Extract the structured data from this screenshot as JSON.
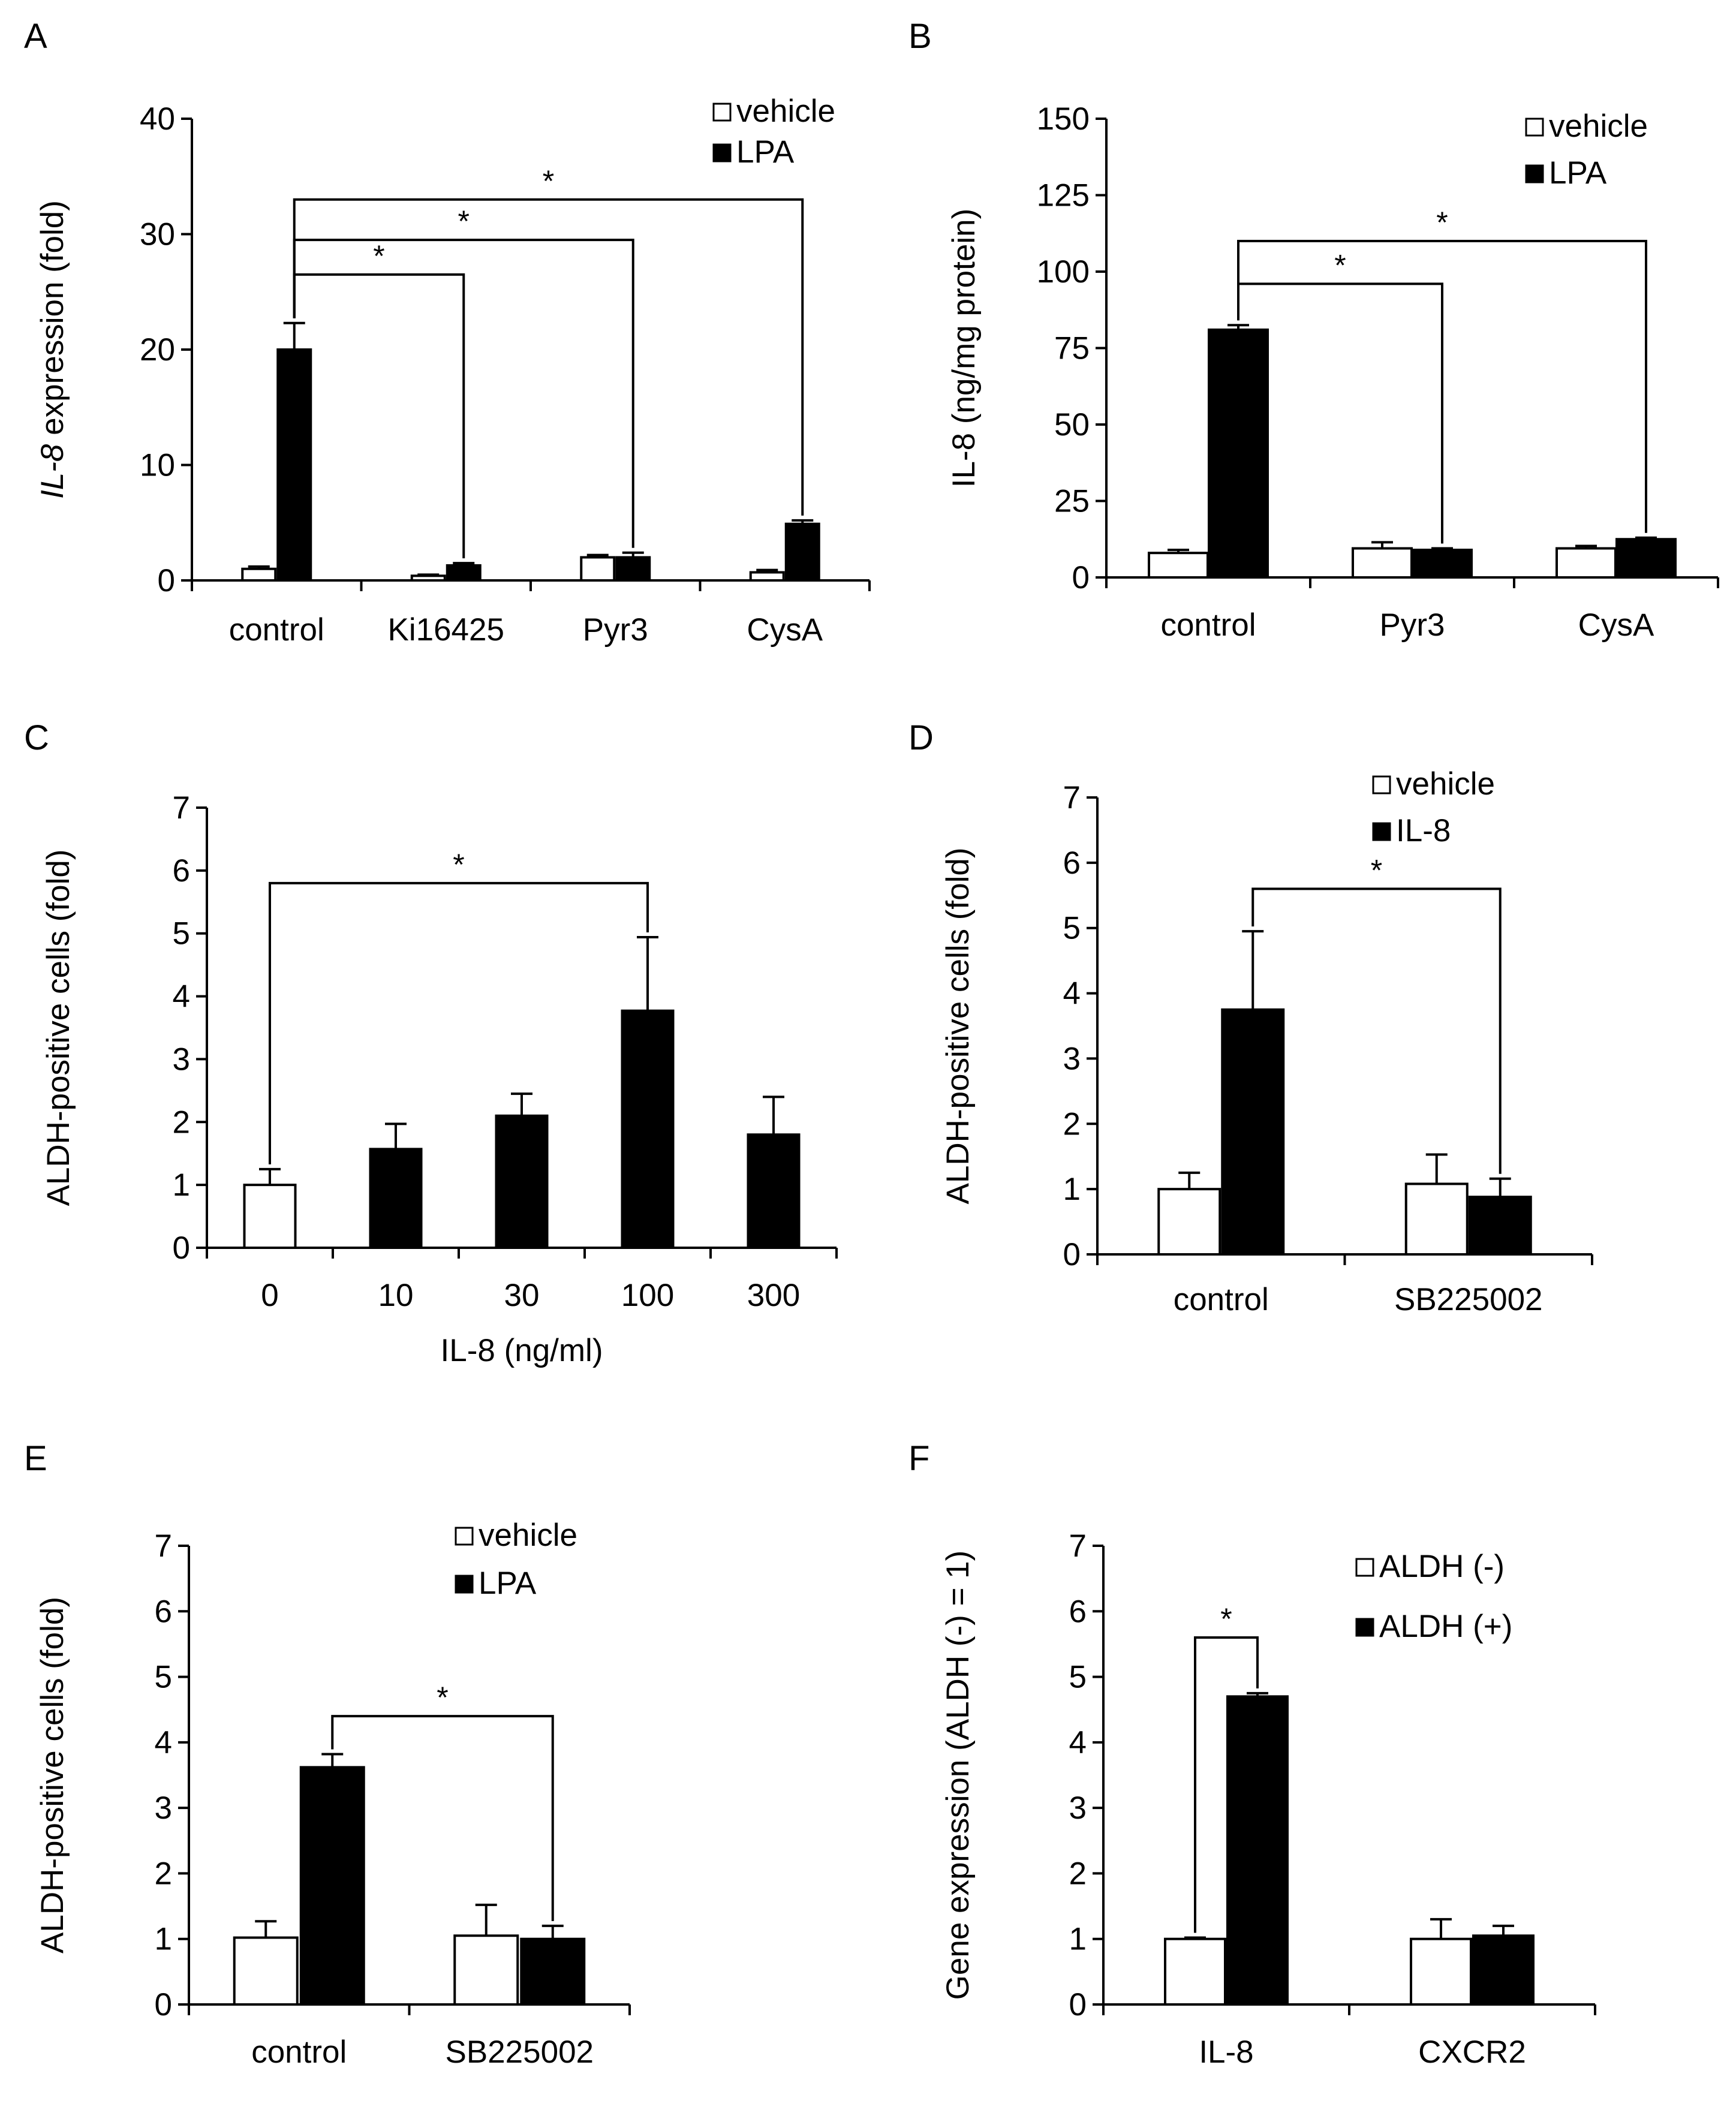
{
  "figure": {
    "colors": {
      "vehicle": "#ffffff",
      "treated": "#000000",
      "stroke": "#000000"
    }
  },
  "chart_data": [
    {
      "panel": "A",
      "type": "bar",
      "title": "",
      "ylabel_italic": "IL-8",
      "ylabel_rest": " expression (fold)",
      "xlabel": "",
      "categories": [
        "control",
        "Ki16425",
        "Pyr3",
        "CysA"
      ],
      "ylim": [
        0,
        40
      ],
      "yticks": [
        "0",
        "10",
        "20",
        "30",
        "40"
      ],
      "legend": [
        "vehicle",
        "LPA"
      ],
      "legend_position": "top-right",
      "series": [
        {
          "name": "vehicle",
          "values": [
            1.0,
            0.4,
            2.0,
            0.7
          ],
          "errors": [
            0.2,
            0.1,
            0.2,
            0.2
          ]
        },
        {
          "name": "LPA",
          "values": [
            20.0,
            1.3,
            2.0,
            4.9
          ],
          "errors": [
            2.3,
            0.2,
            0.4,
            0.3
          ]
        }
      ],
      "annotations": [
        {
          "label": "*",
          "from": [
            0,
            1
          ],
          "to": [
            3,
            1
          ],
          "height": 33
        },
        {
          "label": "*",
          "from": [
            0,
            1
          ],
          "to": [
            2,
            1
          ],
          "height": 29.5
        },
        {
          "label": "*",
          "from": [
            0,
            1
          ],
          "to": [
            1,
            1
          ],
          "height": 26.5
        }
      ]
    },
    {
      "panel": "B",
      "type": "bar",
      "title": "",
      "ylabel": "IL-8  (ng/mg protein)",
      "xlabel": "",
      "categories": [
        "control",
        "Pyr3",
        "CysA"
      ],
      "ylim": [
        0,
        150
      ],
      "yticks": [
        "0",
        "25",
        "50",
        "75",
        "100",
        "125",
        "150"
      ],
      "legend": [
        "vehicle",
        "LPA"
      ],
      "legend_position": "top-right",
      "series": [
        {
          "name": "vehicle",
          "values": [
            8,
            9.5,
            9.5
          ],
          "errors": [
            1,
            2,
            0.8
          ]
        },
        {
          "name": "LPA",
          "values": [
            81,
            9,
            12.5
          ],
          "errors": [
            1.5,
            0.5,
            0.5
          ]
        }
      ],
      "annotations": [
        {
          "label": "*",
          "from": [
            0,
            1
          ],
          "to": [
            2,
            1
          ],
          "height": 110
        },
        {
          "label": "*",
          "from": [
            0,
            1
          ],
          "to": [
            1,
            1
          ],
          "height": 96
        }
      ]
    },
    {
      "panel": "C",
      "type": "bar",
      "title": "",
      "ylabel": "ALDH-positive cells (fold)",
      "xlabel": "IL-8  (ng/ml)",
      "categories": [
        "0",
        "10",
        "30",
        "100",
        "300"
      ],
      "ylim": [
        0,
        7
      ],
      "yticks": [
        "0",
        "1",
        "2",
        "3",
        "4",
        "5",
        "6",
        "7"
      ],
      "legend": [],
      "legend_position": "none",
      "series": [
        {
          "name": "IL-8",
          "values": [
            1.0,
            1.57,
            2.1,
            3.77,
            1.8
          ],
          "errors": [
            0.25,
            0.4,
            0.35,
            1.17,
            0.6
          ],
          "fill": [
            "white",
            "black",
            "black",
            "black",
            "black"
          ]
        }
      ],
      "annotations": [
        {
          "label": "*",
          "from": [
            0,
            0
          ],
          "to": [
            3,
            0
          ],
          "height": 5.8
        }
      ]
    },
    {
      "panel": "D",
      "type": "bar",
      "title": "",
      "ylabel": "ALDH-positive cells (fold)",
      "xlabel": "",
      "categories": [
        "control",
        "SB225002"
      ],
      "ylim": [
        0,
        7
      ],
      "yticks": [
        "0",
        "1",
        "2",
        "3",
        "4",
        "5",
        "6",
        "7"
      ],
      "legend": [
        "vehicle",
        "IL-8"
      ],
      "legend_position": "top-right",
      "series": [
        {
          "name": "vehicle",
          "values": [
            1.0,
            1.08
          ],
          "errors": [
            0.25,
            0.45
          ]
        },
        {
          "name": "IL-8",
          "values": [
            3.75,
            0.88
          ],
          "errors": [
            1.2,
            0.28
          ]
        }
      ],
      "annotations": [
        {
          "label": "*",
          "from": [
            0,
            1
          ],
          "to": [
            1,
            1
          ],
          "height": 5.6
        }
      ]
    },
    {
      "panel": "E",
      "type": "bar",
      "title": "",
      "ylabel": "ALDH-positive cells (fold)",
      "xlabel": "",
      "categories": [
        "control",
        "SB225002"
      ],
      "ylim": [
        0,
        7
      ],
      "yticks": [
        "0",
        "1",
        "2",
        "3",
        "4",
        "5",
        "6",
        "7"
      ],
      "legend": [
        "vehicle",
        "LPA"
      ],
      "legend_position": "top-right",
      "series": [
        {
          "name": "vehicle",
          "values": [
            1.02,
            1.05
          ],
          "errors": [
            0.25,
            0.47
          ]
        },
        {
          "name": "LPA",
          "values": [
            3.62,
            1.0
          ],
          "errors": [
            0.2,
            0.2
          ]
        }
      ],
      "annotations": [
        {
          "label": "*",
          "from": [
            0,
            1
          ],
          "to": [
            1,
            1
          ],
          "height": 4.4
        }
      ]
    },
    {
      "panel": "F",
      "type": "bar",
      "title": "",
      "ylabel": "Gene expression (ALDH (-) = 1)",
      "xlabel": "",
      "categories": [
        "IL-8",
        "CXCR2"
      ],
      "ylim": [
        0,
        7
      ],
      "yticks": [
        "0",
        "1",
        "2",
        "3",
        "4",
        "5",
        "6",
        "7"
      ],
      "legend": [
        "ALDH (-)",
        "ALDH (+)"
      ],
      "legend_position": "top-right",
      "series": [
        {
          "name": "ALDH (-)",
          "values": [
            1.0,
            1.0
          ],
          "errors": [
            0.02,
            0.3
          ]
        },
        {
          "name": "ALDH (+)",
          "values": [
            4.7,
            1.05
          ],
          "errors": [
            0.05,
            0.15
          ]
        }
      ],
      "annotations": [
        {
          "label": "*",
          "from": [
            0,
            0
          ],
          "to": [
            0,
            1
          ],
          "height": 5.6
        }
      ]
    }
  ]
}
